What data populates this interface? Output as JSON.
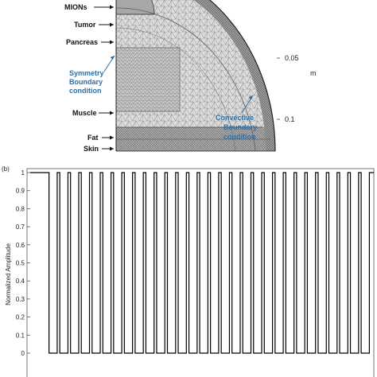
{
  "panel_a": {
    "labels": {
      "mions": "MIONs",
      "tumor": "Tumor",
      "pancreas": "Pancreas",
      "symmetry_line1": "Symmetry",
      "symmetry_line2": "Boundary",
      "symmetry_line3": "condition",
      "muscle": "Muscle",
      "fat": "Fat",
      "skin": "Skin",
      "convective_line1": "Convective",
      "convective_line2": "Boundary",
      "convective_line3": "condition"
    },
    "axis": {
      "ticks": [
        "0.05",
        "0.1"
      ],
      "unit": "m"
    },
    "colors": {
      "annotation_blue": "#2d6fa6",
      "mesh": "#9a9a9a",
      "mesh_fill": "#d6d6d6"
    }
  },
  "panel_b": {
    "panel_label": "(b)",
    "chart_data": {
      "type": "line",
      "title": "",
      "xlabel": "",
      "ylabel": "Normalized Amplitude",
      "ylim": [
        0,
        1
      ],
      "yticks": [
        "1",
        "0.9",
        "0.8",
        "0.7",
        "0.6",
        "0.5",
        "0.4",
        "0.3",
        "0.2",
        "0.1",
        "0"
      ],
      "pulses": 30,
      "high": 1,
      "low": 0,
      "duty_cycle": 0.75,
      "grid": false,
      "series_color": "#000000"
    }
  }
}
